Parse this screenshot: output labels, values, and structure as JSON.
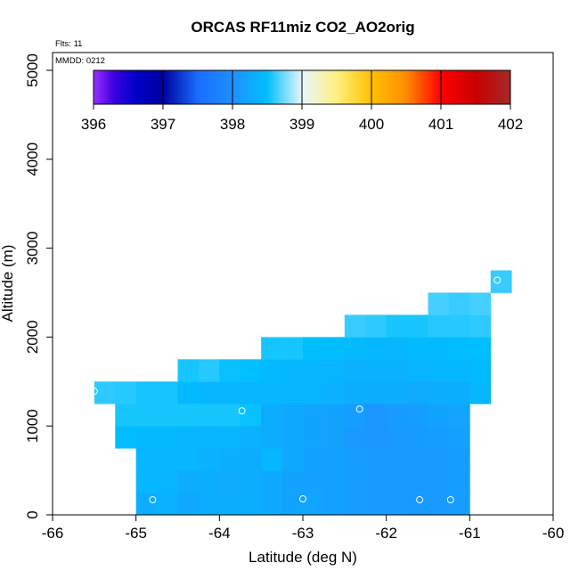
{
  "chart_data": {
    "type": "heatmap",
    "title": "ORCAS RF11miz CO2_AO2orig",
    "annotations": {
      "flights": "Flts: 11",
      "date": "MMDD: 0212"
    },
    "xlabel": "Latitude (deg N)",
    "ylabel": "Altitude (m)",
    "xlim": [
      -66,
      -60
    ],
    "ylim": [
      0,
      5200
    ],
    "x_ticks": [
      -66,
      -65,
      -64,
      -63,
      -62,
      -61,
      -60
    ],
    "y_ticks": [
      0,
      1000,
      2000,
      3000,
      4000,
      5000
    ],
    "grid": false,
    "colorbar": {
      "placement": "top",
      "min": 396,
      "max": 402,
      "ticks": [
        396,
        397,
        398,
        399,
        400,
        401,
        402
      ],
      "stops": [
        {
          "v": 396.0,
          "c": "#9b30ff"
        },
        {
          "v": 396.3,
          "c": "#3a00e0"
        },
        {
          "v": 396.6,
          "c": "#0000c8"
        },
        {
          "v": 397.0,
          "c": "#0000a0"
        },
        {
          "v": 397.5,
          "c": "#1a6dff"
        },
        {
          "v": 398.0,
          "c": "#1e90ff"
        },
        {
          "v": 398.5,
          "c": "#00bfff"
        },
        {
          "v": 399.0,
          "c": "#e6f6ff"
        },
        {
          "v": 399.5,
          "c": "#fff080"
        },
        {
          "v": 400.0,
          "c": "#ffc000"
        },
        {
          "v": 400.5,
          "c": "#ff8c00"
        },
        {
          "v": 401.0,
          "c": "#ff0000"
        },
        {
          "v": 401.5,
          "c": "#c80000"
        },
        {
          "v": 402.0,
          "c": "#a52a2a"
        }
      ]
    },
    "cell_width_deg": 0.25,
    "cell_height_m": 250,
    "cells": [
      {
        "lat": -65.0,
        "alt": 0,
        "v": 398.3
      },
      {
        "lat": -64.75,
        "alt": 0,
        "v": 398.35
      },
      {
        "lat": -64.5,
        "alt": 0,
        "v": 398.25
      },
      {
        "lat": -64.25,
        "alt": 0,
        "v": 398.3
      },
      {
        "lat": -64.0,
        "alt": 0,
        "v": 398.3
      },
      {
        "lat": -63.75,
        "alt": 0,
        "v": 398.32
      },
      {
        "lat": -63.5,
        "alt": 0,
        "v": 398.25
      },
      {
        "lat": -63.25,
        "alt": 0,
        "v": 398.2
      },
      {
        "lat": -63.0,
        "alt": 0,
        "v": 398.22
      },
      {
        "lat": -62.75,
        "alt": 0,
        "v": 398.18
      },
      {
        "lat": -62.5,
        "alt": 0,
        "v": 398.15
      },
      {
        "lat": -62.25,
        "alt": 0,
        "v": 398.12
      },
      {
        "lat": -62.0,
        "alt": 0,
        "v": 398.12
      },
      {
        "lat": -61.75,
        "alt": 0,
        "v": 398.1
      },
      {
        "lat": -61.5,
        "alt": 0,
        "v": 398.12
      },
      {
        "lat": -61.25,
        "alt": 0,
        "v": 398.15
      },
      {
        "lat": -65.0,
        "alt": 250,
        "v": 398.4
      },
      {
        "lat": -64.75,
        "alt": 250,
        "v": 398.38
      },
      {
        "lat": -64.5,
        "alt": 250,
        "v": 398.3
      },
      {
        "lat": -64.25,
        "alt": 250,
        "v": 398.32
      },
      {
        "lat": -64.0,
        "alt": 250,
        "v": 398.28
      },
      {
        "lat": -63.75,
        "alt": 250,
        "v": 398.3
      },
      {
        "lat": -63.5,
        "alt": 250,
        "v": 398.25
      },
      {
        "lat": -63.25,
        "alt": 250,
        "v": 398.2
      },
      {
        "lat": -63.0,
        "alt": 250,
        "v": 398.2
      },
      {
        "lat": -62.75,
        "alt": 250,
        "v": 398.18
      },
      {
        "lat": -62.5,
        "alt": 250,
        "v": 398.15
      },
      {
        "lat": -62.25,
        "alt": 250,
        "v": 398.12
      },
      {
        "lat": -62.0,
        "alt": 250,
        "v": 398.12
      },
      {
        "lat": -61.75,
        "alt": 250,
        "v": 398.1
      },
      {
        "lat": -61.5,
        "alt": 250,
        "v": 398.12
      },
      {
        "lat": -61.25,
        "alt": 250,
        "v": 398.15
      },
      {
        "lat": -65.0,
        "alt": 500,
        "v": 398.42
      },
      {
        "lat": -64.75,
        "alt": 500,
        "v": 398.4
      },
      {
        "lat": -64.5,
        "alt": 500,
        "v": 398.4
      },
      {
        "lat": -64.25,
        "alt": 500,
        "v": 398.35
      },
      {
        "lat": -64.0,
        "alt": 500,
        "v": 398.32
      },
      {
        "lat": -63.75,
        "alt": 500,
        "v": 398.3
      },
      {
        "lat": -63.5,
        "alt": 500,
        "v": 398.42
      },
      {
        "lat": -63.25,
        "alt": 500,
        "v": 398.25
      },
      {
        "lat": -63.0,
        "alt": 500,
        "v": 398.2
      },
      {
        "lat": -62.75,
        "alt": 500,
        "v": 398.18
      },
      {
        "lat": -62.5,
        "alt": 500,
        "v": 398.15
      },
      {
        "lat": -62.25,
        "alt": 500,
        "v": 398.12
      },
      {
        "lat": -62.0,
        "alt": 500,
        "v": 398.1
      },
      {
        "lat": -61.75,
        "alt": 500,
        "v": 398.1
      },
      {
        "lat": -61.5,
        "alt": 500,
        "v": 398.12
      },
      {
        "lat": -61.25,
        "alt": 500,
        "v": 398.15
      },
      {
        "lat": -65.25,
        "alt": 750,
        "v": 398.48
      },
      {
        "lat": -65.0,
        "alt": 750,
        "v": 398.45
      },
      {
        "lat": -64.75,
        "alt": 750,
        "v": 398.45
      },
      {
        "lat": -64.5,
        "alt": 750,
        "v": 398.4
      },
      {
        "lat": -64.25,
        "alt": 750,
        "v": 398.38
      },
      {
        "lat": -64.0,
        "alt": 750,
        "v": 398.4
      },
      {
        "lat": -63.75,
        "alt": 750,
        "v": 398.35
      },
      {
        "lat": -63.5,
        "alt": 750,
        "v": 398.3
      },
      {
        "lat": -63.25,
        "alt": 750,
        "v": 398.25
      },
      {
        "lat": -63.0,
        "alt": 750,
        "v": 398.22
      },
      {
        "lat": -62.75,
        "alt": 750,
        "v": 398.2
      },
      {
        "lat": -62.5,
        "alt": 750,
        "v": 398.1
      },
      {
        "lat": -62.25,
        "alt": 750,
        "v": 398.05
      },
      {
        "lat": -62.0,
        "alt": 750,
        "v": 398.1
      },
      {
        "lat": -61.75,
        "alt": 750,
        "v": 398.12
      },
      {
        "lat": -61.5,
        "alt": 750,
        "v": 398.15
      },
      {
        "lat": -61.25,
        "alt": 750,
        "v": 398.18
      },
      {
        "lat": -65.25,
        "alt": 1000,
        "v": 398.55
      },
      {
        "lat": -65.0,
        "alt": 1000,
        "v": 398.55
      },
      {
        "lat": -64.75,
        "alt": 1000,
        "v": 398.55
      },
      {
        "lat": -64.5,
        "alt": 1000,
        "v": 398.55
      },
      {
        "lat": -64.25,
        "alt": 1000,
        "v": 398.55
      },
      {
        "lat": -64.0,
        "alt": 1000,
        "v": 398.55
      },
      {
        "lat": -63.75,
        "alt": 1000,
        "v": 398.52
      },
      {
        "lat": -63.5,
        "alt": 1000,
        "v": 398.3
      },
      {
        "lat": -63.25,
        "alt": 1000,
        "v": 398.25
      },
      {
        "lat": -63.0,
        "alt": 1000,
        "v": 398.22
      },
      {
        "lat": -62.75,
        "alt": 1000,
        "v": 398.2
      },
      {
        "lat": -62.5,
        "alt": 1000,
        "v": 398.15
      },
      {
        "lat": -62.25,
        "alt": 1000,
        "v": 398.05
      },
      {
        "lat": -62.0,
        "alt": 1000,
        "v": 398.12
      },
      {
        "lat": -61.75,
        "alt": 1000,
        "v": 398.15
      },
      {
        "lat": -61.5,
        "alt": 1000,
        "v": 398.2
      },
      {
        "lat": -61.25,
        "alt": 1000,
        "v": 398.22
      },
      {
        "lat": -65.5,
        "alt": 1250,
        "v": 398.6
      },
      {
        "lat": -65.25,
        "alt": 1250,
        "v": 398.58
      },
      {
        "lat": -65.0,
        "alt": 1250,
        "v": 398.55
      },
      {
        "lat": -64.75,
        "alt": 1250,
        "v": 398.55
      },
      {
        "lat": -64.5,
        "alt": 1250,
        "v": 398.45
      },
      {
        "lat": -64.25,
        "alt": 1250,
        "v": 398.4
      },
      {
        "lat": -64.0,
        "alt": 1250,
        "v": 398.42
      },
      {
        "lat": -63.75,
        "alt": 1250,
        "v": 398.4
      },
      {
        "lat": -63.5,
        "alt": 1250,
        "v": 398.4
      },
      {
        "lat": -63.25,
        "alt": 1250,
        "v": 398.38
      },
      {
        "lat": -63.0,
        "alt": 1250,
        "v": 398.38
      },
      {
        "lat": -62.75,
        "alt": 1250,
        "v": 398.35
      },
      {
        "lat": -62.5,
        "alt": 1250,
        "v": 398.32
      },
      {
        "lat": -62.25,
        "alt": 1250,
        "v": 398.3
      },
      {
        "lat": -62.0,
        "alt": 1250,
        "v": 398.3
      },
      {
        "lat": -61.75,
        "alt": 1250,
        "v": 398.28
      },
      {
        "lat": -61.5,
        "alt": 1250,
        "v": 398.3
      },
      {
        "lat": -61.25,
        "alt": 1250,
        "v": 398.32
      },
      {
        "lat": -61.0,
        "alt": 1250,
        "v": 398.4
      },
      {
        "lat": -64.5,
        "alt": 1500,
        "v": 398.55
      },
      {
        "lat": -64.25,
        "alt": 1500,
        "v": 398.58
      },
      {
        "lat": -64.0,
        "alt": 1500,
        "v": 398.52
      },
      {
        "lat": -63.75,
        "alt": 1500,
        "v": 398.5
      },
      {
        "lat": -63.5,
        "alt": 1500,
        "v": 398.45
      },
      {
        "lat": -63.25,
        "alt": 1500,
        "v": 398.42
      },
      {
        "lat": -63.0,
        "alt": 1500,
        "v": 398.4
      },
      {
        "lat": -62.75,
        "alt": 1500,
        "v": 398.38
      },
      {
        "lat": -62.5,
        "alt": 1500,
        "v": 398.35
      },
      {
        "lat": -62.25,
        "alt": 1500,
        "v": 398.35
      },
      {
        "lat": -62.0,
        "alt": 1500,
        "v": 398.35
      },
      {
        "lat": -61.75,
        "alt": 1500,
        "v": 398.38
      },
      {
        "lat": -61.5,
        "alt": 1500,
        "v": 398.4
      },
      {
        "lat": -61.25,
        "alt": 1500,
        "v": 398.42
      },
      {
        "lat": -61.0,
        "alt": 1500,
        "v": 398.45
      },
      {
        "lat": -63.5,
        "alt": 1750,
        "v": 398.55
      },
      {
        "lat": -63.25,
        "alt": 1750,
        "v": 398.55
      },
      {
        "lat": -63.0,
        "alt": 1750,
        "v": 398.5
      },
      {
        "lat": -62.75,
        "alt": 1750,
        "v": 398.48
      },
      {
        "lat": -62.5,
        "alt": 1750,
        "v": 398.45
      },
      {
        "lat": -62.25,
        "alt": 1750,
        "v": 398.42
      },
      {
        "lat": -62.0,
        "alt": 1750,
        "v": 398.42
      },
      {
        "lat": -61.75,
        "alt": 1750,
        "v": 398.45
      },
      {
        "lat": -61.5,
        "alt": 1750,
        "v": 398.45
      },
      {
        "lat": -61.25,
        "alt": 1750,
        "v": 398.48
      },
      {
        "lat": -61.0,
        "alt": 1750,
        "v": 398.5
      },
      {
        "lat": -62.5,
        "alt": 2000,
        "v": 398.62
      },
      {
        "lat": -62.25,
        "alt": 2000,
        "v": 398.6
      },
      {
        "lat": -62.0,
        "alt": 2000,
        "v": 398.55
      },
      {
        "lat": -61.75,
        "alt": 2000,
        "v": 398.55
      },
      {
        "lat": -61.5,
        "alt": 2000,
        "v": 398.58
      },
      {
        "lat": -61.25,
        "alt": 2000,
        "v": 398.58
      },
      {
        "lat": -61.0,
        "alt": 2000,
        "v": 398.6
      },
      {
        "lat": -61.5,
        "alt": 2250,
        "v": 398.65
      },
      {
        "lat": -61.25,
        "alt": 2250,
        "v": 398.62
      },
      {
        "lat": -61.0,
        "alt": 2250,
        "v": 398.65
      },
      {
        "lat": -60.75,
        "alt": 2500,
        "v": 398.62
      }
    ],
    "points": [
      {
        "lat": -65.5,
        "alt": 1390
      },
      {
        "lat": -64.8,
        "alt": 170
      },
      {
        "lat": -63.73,
        "alt": 1170
      },
      {
        "lat": -63.0,
        "alt": 180
      },
      {
        "lat": -62.32,
        "alt": 1190
      },
      {
        "lat": -61.6,
        "alt": 170
      },
      {
        "lat": -61.23,
        "alt": 170
      },
      {
        "lat": -60.67,
        "alt": 2640
      }
    ]
  }
}
